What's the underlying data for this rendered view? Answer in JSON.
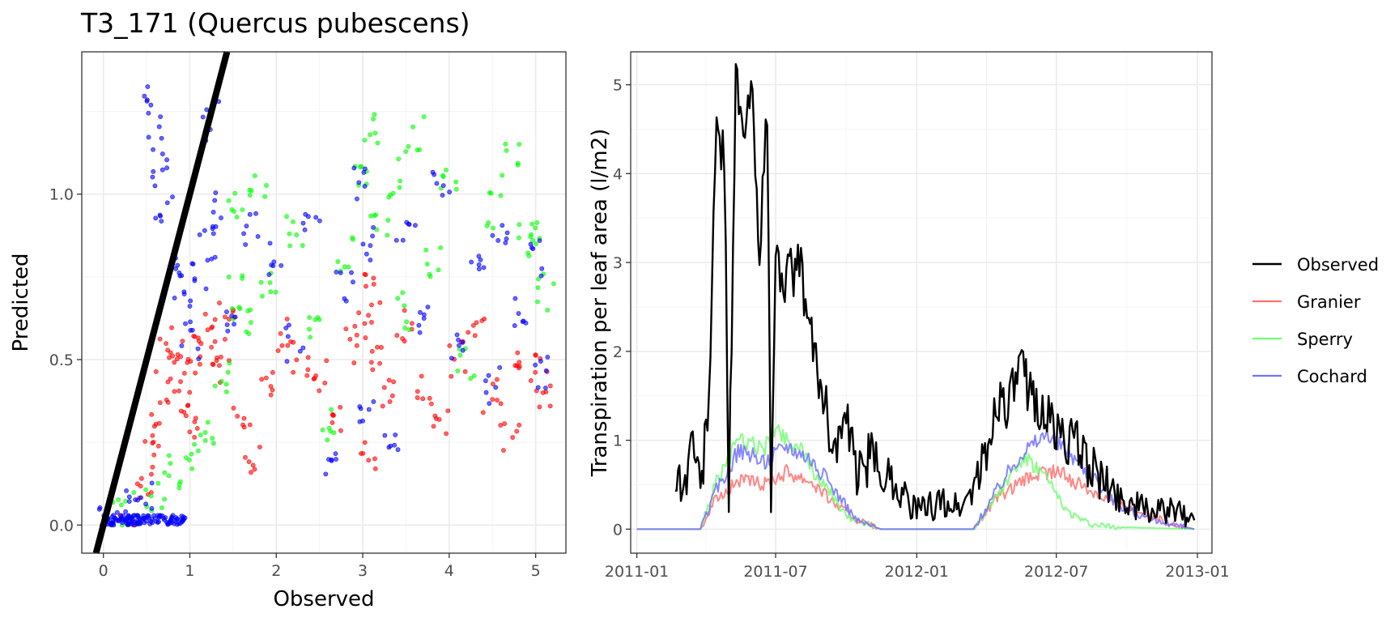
{
  "chart_data": [
    {
      "type": "scatter",
      "title": "T3_171 (Quercus pubescens)",
      "xlabel": "Observed",
      "ylabel": "Predicted",
      "xlim": [
        -0.25,
        5.35
      ],
      "ylim": [
        -0.085,
        1.43
      ],
      "x_ticks": [
        "0",
        "1",
        "2",
        "3",
        "4",
        "5"
      ],
      "y_ticks": [
        "0.0",
        "0.5",
        "1.0"
      ],
      "grid": true,
      "reference_line": {
        "slope": 1,
        "intercept": 0,
        "color": "#000000"
      },
      "series": [
        {
          "color": "#ff0000",
          "points": [
            [
              0.3,
              0.05
            ],
            [
              0.45,
              0.12
            ],
            [
              0.55,
              0.2
            ],
            [
              0.62,
              0.3
            ],
            [
              0.7,
              0.42
            ],
            [
              0.75,
              0.55
            ],
            [
              0.82,
              0.5
            ],
            [
              0.9,
              0.38
            ],
            [
              1.0,
              0.45
            ],
            [
              1.05,
              0.3
            ],
            [
              1.1,
              0.52
            ],
            [
              1.2,
              0.6
            ],
            [
              1.3,
              0.55
            ],
            [
              1.35,
              0.45
            ],
            [
              1.45,
              0.62
            ],
            [
              1.6,
              0.35
            ],
            [
              1.7,
              0.2
            ],
            [
              1.9,
              0.42
            ],
            [
              2.1,
              0.58
            ],
            [
              2.3,
              0.5
            ],
            [
              2.5,
              0.45
            ],
            [
              2.7,
              0.33
            ],
            [
              2.9,
              0.55
            ],
            [
              3.0,
              0.62
            ],
            [
              3.05,
              0.2
            ],
            [
              3.1,
              0.7
            ],
            [
              3.2,
              0.48
            ],
            [
              3.3,
              0.4
            ],
            [
              3.5,
              0.6
            ],
            [
              3.7,
              0.42
            ],
            [
              3.9,
              0.3
            ],
            [
              4.1,
              0.5
            ],
            [
              4.3,
              0.62
            ],
            [
              4.5,
              0.38
            ],
            [
              4.7,
              0.25
            ],
            [
              4.8,
              0.5
            ],
            [
              5.05,
              0.48
            ],
            [
              5.1,
              0.38
            ]
          ]
        },
        {
          "color": "#00ff00",
          "points": [
            [
              0.2,
              0.02
            ],
            [
              0.4,
              0.06
            ],
            [
              0.6,
              0.1
            ],
            [
              0.8,
              0.15
            ],
            [
              1.0,
              0.22
            ],
            [
              1.2,
              0.3
            ],
            [
              1.4,
              0.45
            ],
            [
              1.5,
              0.7
            ],
            [
              1.55,
              0.95
            ],
            [
              1.6,
              0.6
            ],
            [
              1.8,
              1.0
            ],
            [
              1.9,
              0.75
            ],
            [
              2.2,
              0.88
            ],
            [
              2.4,
              0.6
            ],
            [
              2.6,
              0.3
            ],
            [
              2.8,
              0.82
            ],
            [
              3.0,
              1.08
            ],
            [
              3.1,
              1.2
            ],
            [
              3.2,
              0.9
            ],
            [
              3.4,
              1.05
            ],
            [
              3.5,
              0.65
            ],
            [
              3.6,
              1.18
            ],
            [
              3.8,
              0.8
            ],
            [
              4.0,
              1.05
            ],
            [
              4.2,
              0.5
            ],
            [
              4.5,
              0.95
            ],
            [
              4.7,
              1.1
            ],
            [
              4.9,
              0.85
            ],
            [
              5.05,
              0.88
            ],
            [
              5.1,
              0.7
            ]
          ]
        },
        {
          "color": "#0000ff",
          "points": [
            [
              0.05,
              0.0
            ],
            [
              0.2,
              0.03
            ],
            [
              0.35,
              0.05
            ],
            [
              0.5,
              0.08
            ],
            [
              0.55,
              1.3
            ],
            [
              0.6,
              1.18
            ],
            [
              0.65,
              1.05
            ],
            [
              0.7,
              0.95
            ],
            [
              0.8,
              0.8
            ],
            [
              0.9,
              0.65
            ],
            [
              1.0,
              0.55
            ],
            [
              1.1,
              0.75
            ],
            [
              1.2,
              0.85
            ],
            [
              1.25,
              1.22
            ],
            [
              1.3,
              0.95
            ],
            [
              1.5,
              0.62
            ],
            [
              1.7,
              0.9
            ],
            [
              2.0,
              0.8
            ],
            [
              2.2,
              0.55
            ],
            [
              2.4,
              0.95
            ],
            [
              2.6,
              0.2
            ],
            [
              2.8,
              0.72
            ],
            [
              3.0,
              1.02
            ],
            [
              3.05,
              0.35
            ],
            [
              3.1,
              0.85
            ],
            [
              3.3,
              0.25
            ],
            [
              3.5,
              0.9
            ],
            [
              3.7,
              0.6
            ],
            [
              3.9,
              1.02
            ],
            [
              4.1,
              0.55
            ],
            [
              4.3,
              0.78
            ],
            [
              4.5,
              0.42
            ],
            [
              4.6,
              0.88
            ],
            [
              4.8,
              0.65
            ],
            [
              5.0,
              0.8
            ],
            [
              5.1,
              0.45
            ]
          ]
        }
      ]
    },
    {
      "type": "line",
      "ylabel": "Transpiration per leaf area (l/m2)",
      "x_ticks": [
        "2011-01",
        "2011-07",
        "2012-01",
        "2012-07",
        "2013-01"
      ],
      "y_ticks": [
        "0",
        "1",
        "2",
        "3",
        "4",
        "5"
      ],
      "xlim": [
        "2010-12-24",
        "2013-01-20"
      ],
      "ylim": [
        -0.27,
        5.37
      ],
      "grid": true,
      "legend_placement": "right",
      "series": [
        {
          "name": "Observed",
          "color": "#000000",
          "points": [
            [
              "2011-02-20",
              0.6
            ],
            [
              "2011-03-05",
              0.5
            ],
            [
              "2011-03-15",
              1.1
            ],
            [
              "2011-03-25",
              0.4
            ],
            [
              "2011-04-05",
              1.5
            ],
            [
              "2011-04-15",
              4.5
            ],
            [
              "2011-04-25",
              4.2
            ],
            [
              "2011-05-01",
              0.4
            ],
            [
              "2011-05-10",
              5.1
            ],
            [
              "2011-05-20",
              4.3
            ],
            [
              "2011-05-30",
              5.0
            ],
            [
              "2011-06-10",
              3.2
            ],
            [
              "2011-06-20",
              4.6
            ],
            [
              "2011-06-25",
              0.3
            ],
            [
              "2011-07-01",
              3.0
            ],
            [
              "2011-07-15",
              2.8
            ],
            [
              "2011-08-01",
              3.0
            ],
            [
              "2011-08-15",
              2.2
            ],
            [
              "2011-09-01",
              1.5
            ],
            [
              "2011-09-15",
              0.9
            ],
            [
              "2011-10-01",
              1.2
            ],
            [
              "2011-10-15",
              0.6
            ],
            [
              "2011-11-01",
              0.8
            ],
            [
              "2011-12-01",
              0.55
            ],
            [
              "2012-01-01",
              0.2
            ],
            [
              "2012-02-01",
              0.3
            ],
            [
              "2012-03-01",
              0.25
            ],
            [
              "2012-04-01",
              0.8
            ],
            [
              "2012-04-15",
              1.5
            ],
            [
              "2012-05-01",
              1.4
            ],
            [
              "2012-05-15",
              1.8
            ],
            [
              "2012-06-01",
              1.5
            ],
            [
              "2012-06-15",
              1.3
            ],
            [
              "2012-07-01",
              1.1
            ],
            [
              "2012-08-01",
              0.9
            ],
            [
              "2012-08-15",
              0.7
            ],
            [
              "2012-09-01",
              0.5
            ],
            [
              "2012-10-01",
              0.3
            ],
            [
              "2012-11-01",
              0.2
            ],
            [
              "2012-12-01",
              0.2
            ],
            [
              "2012-12-28",
              0.1
            ]
          ]
        },
        {
          "name": "Granier",
          "color": "#ff7373",
          "points": [
            [
              "2011-01-01",
              0
            ],
            [
              "2011-03-25",
              0
            ],
            [
              "2011-04-15",
              0.35
            ],
            [
              "2011-05-15",
              0.55
            ],
            [
              "2011-06-15",
              0.5
            ],
            [
              "2011-07-15",
              0.65
            ],
            [
              "2011-08-15",
              0.55
            ],
            [
              "2011-09-15",
              0.3
            ],
            [
              "2011-10-15",
              0.1
            ],
            [
              "2011-11-01",
              0.05
            ],
            [
              "2011-11-15",
              0
            ],
            [
              "2012-03-15",
              0
            ],
            [
              "2012-04-15",
              0.35
            ],
            [
              "2012-06-01",
              0.6
            ],
            [
              "2012-07-01",
              0.65
            ],
            [
              "2012-08-01",
              0.5
            ],
            [
              "2012-09-15",
              0.3
            ],
            [
              "2012-11-01",
              0.15
            ],
            [
              "2012-12-01",
              0.05
            ],
            [
              "2012-12-28",
              0
            ]
          ]
        },
        {
          "name": "Sperry",
          "color": "#73ff73",
          "points": [
            [
              "2011-01-01",
              0
            ],
            [
              "2011-03-25",
              0
            ],
            [
              "2011-04-15",
              0.55
            ],
            [
              "2011-05-15",
              1.0
            ],
            [
              "2011-06-15",
              0.9
            ],
            [
              "2011-07-01",
              1.15
            ],
            [
              "2011-08-01",
              0.9
            ],
            [
              "2011-09-01",
              0.5
            ],
            [
              "2011-10-01",
              0.15
            ],
            [
              "2011-11-01",
              0.05
            ],
            [
              "2011-11-15",
              0
            ],
            [
              "2012-03-15",
              0
            ],
            [
              "2012-04-15",
              0.4
            ],
            [
              "2012-05-20",
              0.8
            ],
            [
              "2012-06-15",
              0.6
            ],
            [
              "2012-07-15",
              0.2
            ],
            [
              "2012-08-15",
              0.05
            ],
            [
              "2012-10-01",
              0.02
            ],
            [
              "2012-12-28",
              0
            ]
          ]
        },
        {
          "name": "Cochard",
          "color": "#7373ff",
          "points": [
            [
              "2011-01-01",
              0
            ],
            [
              "2011-03-25",
              0
            ],
            [
              "2011-04-15",
              0.45
            ],
            [
              "2011-05-15",
              0.9
            ],
            [
              "2011-06-15",
              0.75
            ],
            [
              "2011-07-15",
              0.95
            ],
            [
              "2011-08-15",
              0.8
            ],
            [
              "2011-09-15",
              0.45
            ],
            [
              "2011-10-15",
              0.1
            ],
            [
              "2011-11-15",
              0
            ],
            [
              "2012-03-15",
              0
            ],
            [
              "2012-04-15",
              0.45
            ],
            [
              "2012-05-15",
              0.85
            ],
            [
              "2012-06-15",
              1.05
            ],
            [
              "2012-07-15",
              0.9
            ],
            [
              "2012-08-15",
              0.6
            ],
            [
              "2012-09-15",
              0.3
            ],
            [
              "2012-11-01",
              0.1
            ],
            [
              "2012-12-28",
              0
            ]
          ]
        }
      ]
    }
  ]
}
